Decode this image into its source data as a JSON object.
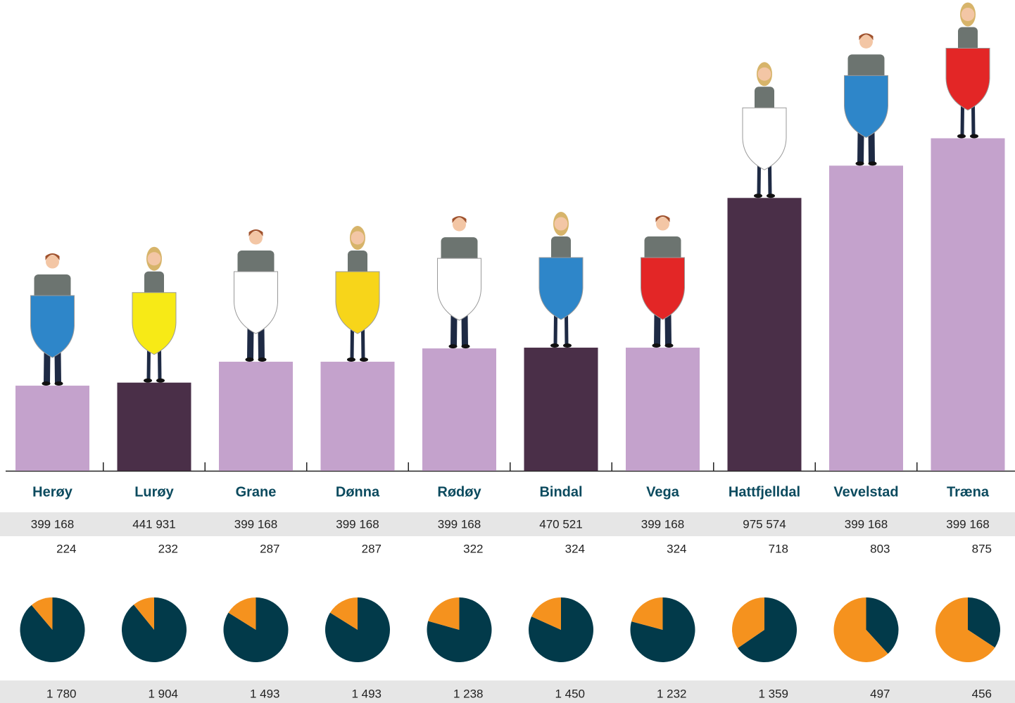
{
  "chart_data": {
    "type": "bar",
    "categories": [
      "Herøy",
      "Lurøy",
      "Grane",
      "Dønna",
      "Rødøy",
      "Bindal",
      "Vega",
      "Hattfjelldal",
      "Vevelstad",
      "Træna"
    ],
    "row_a": [
      "399 168",
      "441 931",
      "399 168",
      "399 168",
      "399 168",
      "470 521",
      "399 168",
      "975 574",
      "399 168",
      "399 168"
    ],
    "values": [
      224,
      232,
      287,
      287,
      322,
      324,
      324,
      718,
      803,
      875
    ],
    "colors": [
      "#c4a2cc",
      "#4a2f48",
      "#c4a2cc",
      "#c4a2cc",
      "#c4a2cc",
      "#4a2f48",
      "#c4a2cc",
      "#4a2f48",
      "#c4a2cc",
      "#c4a2cc"
    ],
    "remainder": {
      "values": [
        1780,
        1904,
        1493,
        1493,
        1238,
        1450,
        1232,
        1359,
        497,
        456
      ],
      "value_labels": [
        "1 780",
        "1 904",
        "1 493",
        "1 493",
        "1 238",
        "1 450",
        "1 232",
        "1 359",
        "497",
        "456"
      ]
    },
    "pie_colors": [
      "#f5921e",
      "#023a4a"
    ]
  }
}
